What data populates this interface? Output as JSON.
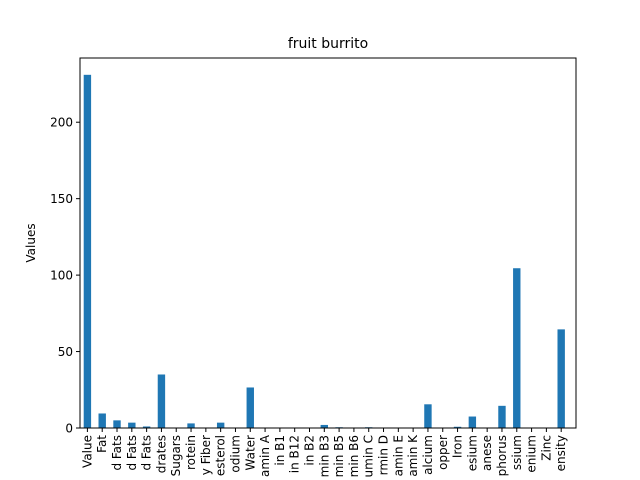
{
  "chart_data": {
    "type": "bar",
    "title": "fruit burrito",
    "xlabel": "",
    "ylabel": "Values",
    "ylim": [
      0,
      242
    ],
    "yticks": [
      0,
      50,
      100,
      150,
      200
    ],
    "grid": false,
    "bar_color": "#1f77b4",
    "categories": [
      "Value",
      "Fat",
      "d Fats",
      "d Fats",
      "d Fats",
      "drates",
      "Sugars",
      "rotein",
      "y Fiber",
      "esterol",
      "odium",
      "Water",
      "amin A",
      "in B1",
      "in B12",
      "in B2",
      "min B3",
      "min B5",
      "min B6",
      "umin C",
      "rmin D",
      "amin E",
      "amin K",
      "alcium",
      "opper",
      "Iron",
      "esium",
      "anese",
      "phorus",
      "ssium",
      "enium",
      "Zinc",
      "ensity"
    ],
    "values": [
      231,
      9.5,
      5,
      3.5,
      1,
      35,
      0.2,
      3,
      0.3,
      3.5,
      0.3,
      26.5,
      0.1,
      0.1,
      0,
      0.1,
      2,
      0.5,
      0.2,
      0.5,
      0,
      0.3,
      0.1,
      15.5,
      0.1,
      0.8,
      7.5,
      0.2,
      14.5,
      104.5,
      0.1,
      0.3,
      64.5
    ]
  }
}
